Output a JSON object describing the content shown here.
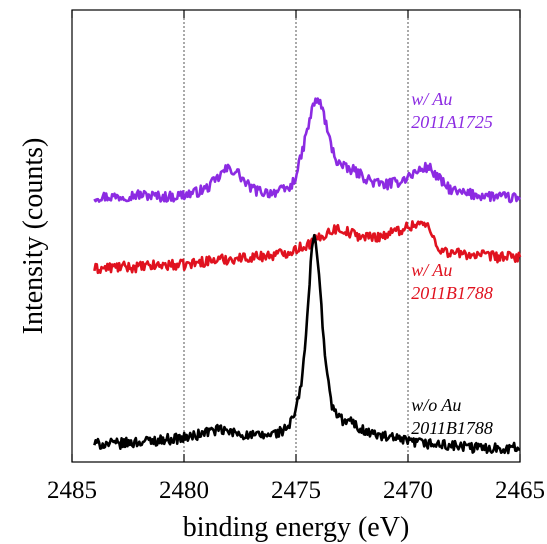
{
  "chart_data": {
    "type": "line",
    "xlabel": "binding energy (eV)",
    "ylabel": "Intensity (counts)",
    "x_reversed": true,
    "xlim": [
      2485,
      2465
    ],
    "x_ticks": [
      2485,
      2480,
      2475,
      2470,
      2465
    ],
    "x_tick_labels": [
      "2485",
      "2480",
      "2475",
      "2470",
      "2465"
    ],
    "ylim": [
      0,
      100
    ],
    "y_ticks_shown": false,
    "grid": {
      "vertical_dotted_at": [
        2485,
        2480,
        2475,
        2470,
        2465
      ]
    },
    "legend": "none (series labelled by annotations at right)",
    "series": [
      {
        "name": "w/ Au 2011A1725",
        "color": "#8c2be2",
        "points": [
          [
            2484,
            66
          ],
          [
            2483,
            66
          ],
          [
            2482,
            66.5
          ],
          [
            2481,
            66
          ],
          [
            2480.5,
            66
          ],
          [
            2480,
            66.5
          ],
          [
            2479.5,
            67
          ],
          [
            2479,
            68
          ],
          [
            2478.5,
            70.5
          ],
          [
            2478.2,
            72.5
          ],
          [
            2478,
            73
          ],
          [
            2477.6,
            72
          ],
          [
            2477.2,
            69
          ],
          [
            2476.8,
            67.5
          ],
          [
            2476.2,
            67
          ],
          [
            2475.6,
            67.5
          ],
          [
            2475.2,
            68.5
          ],
          [
            2474.9,
            73
          ],
          [
            2474.6,
            80
          ],
          [
            2474.35,
            86
          ],
          [
            2474.15,
            90
          ],
          [
            2474,
            90
          ],
          [
            2473.8,
            87.5
          ],
          [
            2473.5,
            80
          ],
          [
            2473.2,
            75
          ],
          [
            2472.8,
            73
          ],
          [
            2472.4,
            72.5
          ],
          [
            2472,
            71
          ],
          [
            2471.5,
            69.5
          ],
          [
            2471,
            69
          ],
          [
            2470.5,
            69.5
          ],
          [
            2470,
            71
          ],
          [
            2469.5,
            72.5
          ],
          [
            2469.1,
            73.5
          ],
          [
            2468.7,
            71
          ],
          [
            2468.3,
            68.5
          ],
          [
            2467.8,
            67
          ],
          [
            2467,
            66.5
          ],
          [
            2466,
            66
          ],
          [
            2465,
            65.5
          ]
        ]
      },
      {
        "name": "w/ Au 2011B1788",
        "color": "#e0121f",
        "points": [
          [
            2484,
            48
          ],
          [
            2483,
            48.5
          ],
          [
            2482,
            48.5
          ],
          [
            2481,
            49
          ],
          [
            2480,
            49
          ],
          [
            2479,
            50
          ],
          [
            2478,
            50.5
          ],
          [
            2477,
            51
          ],
          [
            2476,
            51.5
          ],
          [
            2475.5,
            52
          ],
          [
            2475,
            53
          ],
          [
            2474.5,
            54
          ],
          [
            2474,
            55.5
          ],
          [
            2473.5,
            57.5
          ],
          [
            2473.2,
            58
          ],
          [
            2473,
            58
          ],
          [
            2472.6,
            57
          ],
          [
            2472,
            56
          ],
          [
            2471.5,
            56
          ],
          [
            2471,
            56.5
          ],
          [
            2470.5,
            57.5
          ],
          [
            2470,
            58.5
          ],
          [
            2469.5,
            59.5
          ],
          [
            2469.1,
            58.5
          ],
          [
            2468.8,
            55
          ],
          [
            2468.5,
            52.5
          ],
          [
            2468,
            52
          ],
          [
            2467,
            51.5
          ],
          [
            2466,
            51
          ],
          [
            2465,
            51
          ]
        ]
      },
      {
        "name": "w/o Au 2011B1788",
        "color": "#000000",
        "points": [
          [
            2484,
            4.5
          ],
          [
            2483,
            4.5
          ],
          [
            2482,
            5
          ],
          [
            2481,
            5.5
          ],
          [
            2480,
            6
          ],
          [
            2479.5,
            6.5
          ],
          [
            2479,
            7.5
          ],
          [
            2478.5,
            8
          ],
          [
            2478,
            7.5
          ],
          [
            2477,
            6.5
          ],
          [
            2476.5,
            6.5
          ],
          [
            2476,
            7
          ],
          [
            2475.5,
            8
          ],
          [
            2475.2,
            10
          ],
          [
            2475,
            13
          ],
          [
            2474.8,
            18
          ],
          [
            2474.6,
            28
          ],
          [
            2474.45,
            40
          ],
          [
            2474.3,
            52
          ],
          [
            2474.2,
            56.5
          ],
          [
            2474.1,
            55
          ],
          [
            2473.95,
            45
          ],
          [
            2473.8,
            33
          ],
          [
            2473.6,
            21
          ],
          [
            2473.4,
            14
          ],
          [
            2473.1,
            11
          ],
          [
            2472.8,
            10
          ],
          [
            2472.5,
            10
          ],
          [
            2472.2,
            8.5
          ],
          [
            2471.8,
            7.5
          ],
          [
            2471.3,
            6.5
          ],
          [
            2470.8,
            6
          ],
          [
            2470,
            5
          ],
          [
            2469,
            4.5
          ],
          [
            2468,
            4
          ],
          [
            2467,
            3.5
          ],
          [
            2466,
            3.5
          ],
          [
            2465,
            3.5
          ]
        ]
      }
    ],
    "annotations": [
      {
        "series": 0,
        "line1": "w/ Au",
        "line2": "2011A1725",
        "color": "#8c2be2"
      },
      {
        "series": 1,
        "line1": "w/ Au",
        "line2": "2011B1788",
        "color": "#e0121f"
      },
      {
        "series": 2,
        "line1": "w/o Au",
        "line2": "2011B1788",
        "color": "#000000"
      }
    ]
  }
}
